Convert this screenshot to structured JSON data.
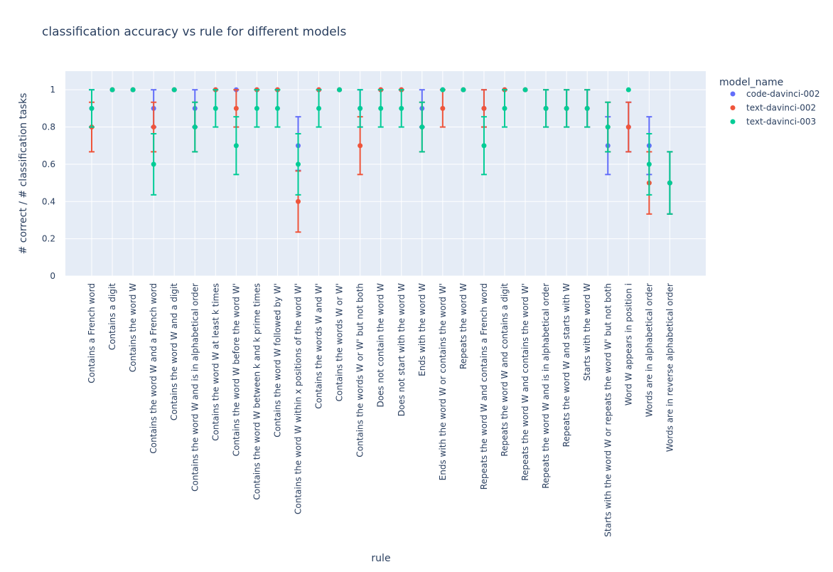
{
  "chart_data": {
    "type": "scatter",
    "title": "classification accuracy vs rule for different models",
    "xlabel": "rule",
    "ylabel": "# correct / # classification tasks",
    "ylim": [
      0,
      1.1
    ],
    "yticks": [
      0,
      0.2,
      0.4,
      0.6,
      0.8,
      1
    ],
    "ytick_labels": [
      "0",
      "0.2",
      "0.4",
      "0.6",
      "0.8",
      "1"
    ],
    "grid": true,
    "legend_title": "model_name",
    "legend_position": "top-right",
    "categories": [
      "Contains a French word",
      "Contains a digit",
      "Contains the word W",
      "Contains the word W and a French word",
      "Contains the word W and a digit",
      "Contains the word W and is in alphabetical order",
      "Contains the word W at least k times",
      "Contains the word W before the word W'",
      "Contains the word W between k and k prime times",
      "Contains the word W followed by W'",
      "Contains the word W within x positions of the word W'",
      "Contains the words W and W'",
      "Contains the words W or W'",
      "Contains the words W or W' but not both",
      "Does not contain the word W",
      "Does not start with the word W",
      "Ends with the word W",
      "Ends with the word W or contains the word W'",
      "Repeats the word W",
      "Repeats the word W and contains a French word",
      "Repeats the word W and contains a digit",
      "Repeats the word W and contains the word W'",
      "Repeats the word W and is in alphabetical order",
      "Repeats the word W and starts with W",
      "Starts with the word W",
      "Starts with the word W or repeats the word W' but not both",
      "Word W appears in position i",
      "Words are in alphabetical order",
      "Words are in reverse alphabetical order"
    ],
    "series": [
      {
        "name": "code-davinci-002",
        "color": "#636efa",
        "values": [
          0.9,
          1.0,
          1.0,
          0.9,
          1.0,
          0.9,
          1.0,
          1.0,
          1.0,
          1.0,
          0.7,
          1.0,
          1.0,
          0.9,
          1.0,
          1.0,
          0.9,
          1.0,
          1.0,
          0.9,
          1.0,
          1.0,
          0.9,
          0.9,
          0.9,
          0.7,
          0.8,
          0.7,
          0.5
        ],
        "err_lower": [
          0.8,
          1.0,
          1.0,
          0.8,
          1.0,
          0.8,
          1.0,
          1.0,
          1.0,
          1.0,
          0.567,
          1.0,
          1.0,
          0.8,
          1.0,
          1.0,
          0.8,
          1.0,
          1.0,
          0.8,
          1.0,
          1.0,
          0.8,
          0.8,
          0.8,
          0.545,
          0.667,
          0.545,
          0.333
        ],
        "err_upper": [
          1.0,
          1.0,
          1.0,
          1.0,
          1.0,
          1.0,
          1.0,
          1.0,
          1.0,
          1.0,
          0.855,
          1.0,
          1.0,
          1.0,
          1.0,
          1.0,
          1.0,
          1.0,
          1.0,
          1.0,
          1.0,
          1.0,
          1.0,
          1.0,
          1.0,
          0.855,
          0.933,
          0.855,
          0.667
        ]
      },
      {
        "name": "text-davinci-002",
        "color": "#ef553b",
        "values": [
          0.8,
          1.0,
          1.0,
          0.8,
          1.0,
          0.8,
          1.0,
          0.9,
          1.0,
          1.0,
          0.4,
          1.0,
          1.0,
          0.7,
          1.0,
          1.0,
          0.8,
          0.9,
          1.0,
          0.9,
          1.0,
          1.0,
          0.9,
          0.9,
          0.9,
          0.8,
          0.8,
          0.5,
          0.5
        ],
        "err_lower": [
          0.667,
          1.0,
          1.0,
          0.667,
          1.0,
          0.667,
          1.0,
          0.8,
          1.0,
          1.0,
          0.236,
          1.0,
          1.0,
          0.545,
          1.0,
          1.0,
          0.667,
          0.8,
          1.0,
          0.8,
          1.0,
          1.0,
          0.8,
          0.8,
          0.8,
          0.667,
          0.667,
          0.333,
          0.333
        ],
        "err_upper": [
          0.933,
          1.0,
          1.0,
          0.933,
          1.0,
          0.933,
          1.0,
          1.0,
          1.0,
          1.0,
          0.564,
          1.0,
          1.0,
          0.855,
          1.0,
          1.0,
          0.933,
          1.0,
          1.0,
          1.0,
          1.0,
          1.0,
          1.0,
          1.0,
          1.0,
          0.933,
          0.933,
          0.667,
          0.667
        ]
      },
      {
        "name": "text-davinci-003",
        "color": "#00cc96",
        "values": [
          0.9,
          1.0,
          1.0,
          0.6,
          1.0,
          0.8,
          0.9,
          0.7,
          0.9,
          0.9,
          0.6,
          0.9,
          1.0,
          0.9,
          0.9,
          0.9,
          0.8,
          1.0,
          1.0,
          0.7,
          0.9,
          1.0,
          0.9,
          0.9,
          0.9,
          0.8,
          1.0,
          0.6,
          0.5
        ],
        "err_lower": [
          0.8,
          1.0,
          1.0,
          0.436,
          1.0,
          0.667,
          0.8,
          0.545,
          0.8,
          0.8,
          0.436,
          0.8,
          1.0,
          0.8,
          0.8,
          0.8,
          0.667,
          1.0,
          1.0,
          0.545,
          0.8,
          1.0,
          0.8,
          0.8,
          0.8,
          0.667,
          1.0,
          0.436,
          0.333
        ],
        "err_upper": [
          1.0,
          1.0,
          1.0,
          0.764,
          1.0,
          0.933,
          1.0,
          0.855,
          1.0,
          1.0,
          0.764,
          1.0,
          1.0,
          1.0,
          1.0,
          1.0,
          0.933,
          1.0,
          1.0,
          0.855,
          1.0,
          1.0,
          1.0,
          1.0,
          1.0,
          0.933,
          1.0,
          0.764,
          0.667
        ]
      }
    ]
  }
}
